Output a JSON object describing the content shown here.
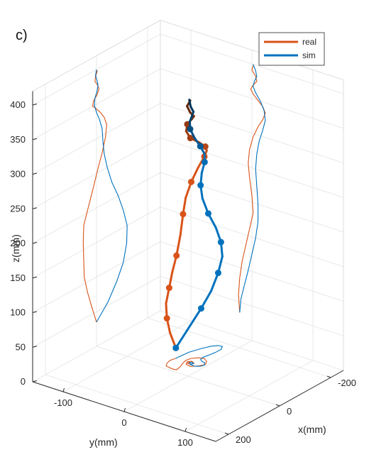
{
  "panel_label": "c)",
  "chart_data": {
    "type": "line3d",
    "xlabel": "x(mm)",
    "ylabel": "y(mm)",
    "zlabel": "z(mm)",
    "xlim": [
      -250,
      250
    ],
    "ylim": [
      -150,
      150
    ],
    "zlim": [
      0,
      420
    ],
    "x_ticks": [
      "-200",
      "0",
      "200"
    ],
    "y_ticks": [
      "-100",
      "0",
      "100"
    ],
    "z_ticks": [
      "0",
      "50",
      "100",
      "150",
      "200",
      "250",
      "300",
      "350",
      "400"
    ],
    "grid": true,
    "legend_position": "top-right",
    "series": [
      {
        "name": "real",
        "color": "#d95319",
        "points": [
          [
            0,
            -20,
            35
          ],
          [
            18,
            -22,
            60
          ],
          [
            35,
            -20,
            85
          ],
          [
            48,
            -16,
            110
          ],
          [
            50,
            -10,
            135
          ],
          [
            52,
            -4,
            160
          ],
          [
            50,
            2,
            185
          ],
          [
            30,
            0,
            210
          ],
          [
            10,
            -4,
            235
          ],
          [
            -5,
            -6,
            255
          ],
          [
            -22,
            -4,
            275
          ],
          [
            -35,
            2,
            295
          ],
          [
            -40,
            10,
            312
          ],
          [
            -30,
            18,
            325
          ],
          [
            -15,
            22,
            335
          ],
          [
            0,
            18,
            343
          ],
          [
            15,
            10,
            350
          ],
          [
            12,
            2,
            357
          ],
          [
            -2,
            -2,
            363
          ],
          [
            -10,
            2,
            370
          ],
          [
            -4,
            8,
            377
          ],
          [
            6,
            6,
            384
          ],
          [
            4,
            0,
            391
          ],
          [
            -4,
            2,
            398
          ]
        ]
      },
      {
        "name": "sim",
        "color": "#0072bd",
        "points": [
          [
            0,
            -20,
            35
          ],
          [
            -45,
            -18,
            55
          ],
          [
            -80,
            -12,
            78
          ],
          [
            -105,
            -6,
            100
          ],
          [
            -118,
            0,
            125
          ],
          [
            -120,
            6,
            150
          ],
          [
            -105,
            10,
            175
          ],
          [
            -85,
            10,
            200
          ],
          [
            -60,
            8,
            225
          ],
          [
            -42,
            6,
            250
          ],
          [
            -30,
            8,
            272
          ],
          [
            -25,
            12,
            292
          ],
          [
            -22,
            18,
            310
          ],
          [
            -12,
            22,
            325
          ],
          [
            0,
            20,
            338
          ],
          [
            8,
            14,
            350
          ],
          [
            6,
            6,
            360
          ],
          [
            -2,
            2,
            368
          ],
          [
            -6,
            4,
            376
          ],
          [
            -2,
            8,
            384
          ],
          [
            4,
            6,
            392
          ],
          [
            0,
            2,
            400
          ]
        ]
      }
    ]
  }
}
